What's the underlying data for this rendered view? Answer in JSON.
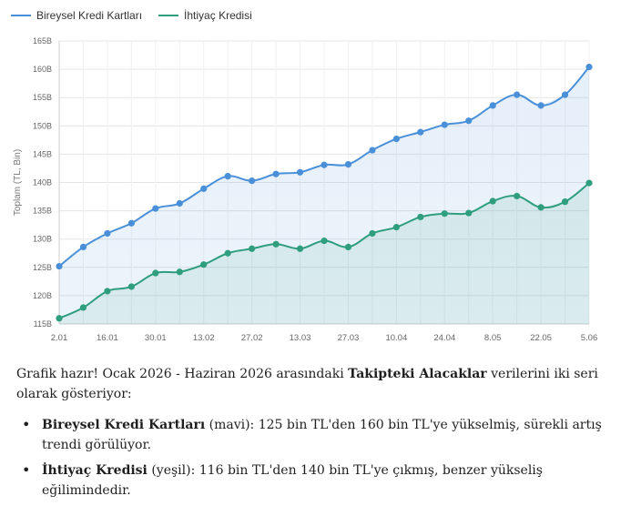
{
  "chart_data": {
    "type": "line",
    "x": [
      "2.01",
      "9.01",
      "16.01",
      "23.01",
      "30.01",
      "6.02",
      "13.02",
      "20.02",
      "27.02",
      "6.03",
      "13.03",
      "20.03",
      "27.03",
      "3.04",
      "10.04",
      "17.04",
      "24.04",
      "1.05",
      "8.05",
      "15.05",
      "22.05",
      "29.05",
      "5.06"
    ],
    "x_tick_labels": [
      "2.01",
      "16.01",
      "30.01",
      "13.02",
      "27.02",
      "13.03",
      "27.03",
      "10.04",
      "24.04",
      "8.05",
      "22.05",
      "5.06"
    ],
    "ylabel": "Toplam (TL, Bin)",
    "ylim": [
      115,
      165
    ],
    "y_ticks": [
      115,
      120,
      125,
      130,
      135,
      140,
      145,
      150,
      155,
      160,
      165
    ],
    "y_tick_labels": [
      "115B",
      "120B",
      "125B",
      "130B",
      "135B",
      "140B",
      "145B",
      "150B",
      "155B",
      "160B",
      "165B"
    ],
    "grid": true,
    "legend_position": "top-left",
    "series": [
      {
        "name": "Bireysel Kredi Kartları",
        "color": "#4a90d9",
        "values": [
          125.2,
          128.6,
          131.0,
          132.8,
          135.4,
          136.3,
          138.9,
          141.1,
          140.3,
          141.5,
          141.8,
          143.1,
          143.2,
          145.7,
          147.7,
          148.9,
          150.2,
          150.9,
          153.6,
          155.5,
          153.6,
          155.5,
          160.4
        ]
      },
      {
        "name": "İhtiyaç Kredisi",
        "color": "#2e9e7e",
        "values": [
          116.0,
          117.9,
          120.8,
          121.6,
          124.0,
          124.2,
          125.5,
          127.5,
          128.3,
          129.1,
          128.3,
          129.7,
          128.6,
          131.0,
          132.1,
          133.9,
          134.5,
          134.6,
          136.7,
          137.6,
          135.6,
          136.6,
          139.9
        ]
      }
    ]
  },
  "text": {
    "intro_a": "Grafik hazır! Ocak 2026 - Haziran 2026 arasındaki ",
    "intro_bold": "Takipteki Alacaklar",
    "intro_b": " verilerini iki seri olarak gösteriyor:",
    "b1_bold": "Bireysel Kredi Kartları",
    "b1_rest": " (mavi): 125 bin TL'den 160 bin TL'ye yükselmiş, sürekli artış trendi görülüyor.",
    "b2_bold": "İhtiyaç Kredisi",
    "b2_rest": " (yeşil): 116 bin TL'den 140 bin TL'ye çıkmış, benzer yükseliş eğilimindedir."
  }
}
